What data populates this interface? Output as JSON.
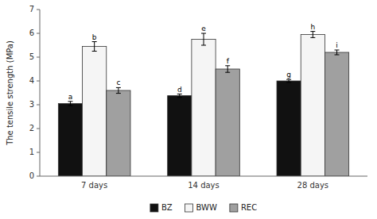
{
  "chart_data": {
    "type": "bar",
    "categories": [
      "7 days",
      "14 days",
      "28 days"
    ],
    "series": [
      {
        "name": "BZ",
        "color": "#111111",
        "values": [
          3.05,
          3.38,
          4.0
        ],
        "errors": [
          0.09,
          0.07,
          0.06
        ],
        "annotations": [
          "a",
          "d",
          "g"
        ]
      },
      {
        "name": "BWW",
        "color": "#f5f5f5",
        "values": [
          5.45,
          5.75,
          5.95
        ],
        "errors": [
          0.2,
          0.25,
          0.13
        ],
        "annotations": [
          "b",
          "e",
          "h"
        ]
      },
      {
        "name": "REC",
        "color": "#a0a0a0",
        "values": [
          3.6,
          4.5,
          5.2
        ],
        "errors": [
          0.12,
          0.14,
          0.1
        ],
        "annotations": [
          "c",
          "f",
          "i"
        ]
      }
    ],
    "y_label": "The tensile strength (MPa)",
    "ylim": [
      0,
      7
    ],
    "yticks": [
      0,
      1,
      2,
      3,
      4,
      5,
      6,
      7
    ],
    "grid": false,
    "legend": "bottom"
  }
}
